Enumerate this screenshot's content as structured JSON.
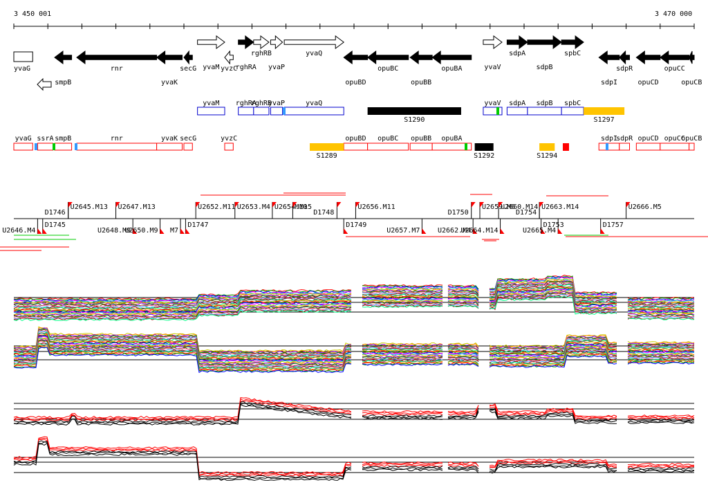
{
  "coordinates": {
    "start_label": "3 450 001",
    "end_label": "3 470 000",
    "start": 3450001,
    "end": 3470000
  },
  "colors": {
    "black": "#000000",
    "outline_blue": "#0000cc",
    "outline_red": "#ff0000",
    "highlight_yellow": "#ffc400",
    "marker_red": "#ff0000",
    "marker_blue": "#3399ff",
    "marker_green": "#00cc00",
    "plot_red": "#ff0000",
    "plot_black": "#000000"
  },
  "genes": [
    {
      "name": "yvaG",
      "start": 3450001,
      "end": 3450555,
      "strand": "+",
      "filled": false
    },
    {
      "name": "smpB",
      "start": 3451200,
      "end": 3451700,
      "strand": "-",
      "filled": true
    },
    {
      "name": "rnr",
      "start": 3451850,
      "end": 3454200,
      "strand": "-",
      "filled": true
    },
    {
      "name": "yvaK",
      "start": 3454200,
      "end": 3454950,
      "strand": "-",
      "filled": true
    },
    {
      "name": "secG",
      "start": 3455000,
      "end": 3455250,
      "strand": "-",
      "filled": true
    },
    {
      "name": "yvaM",
      "start": 3455400,
      "end": 3456200,
      "strand": "+",
      "filled": false
    },
    {
      "name": "yvzC",
      "start": 3456200,
      "end": 3456450,
      "strand": "-",
      "filled": false
    },
    {
      "name": "rghRA",
      "start": 3456600,
      "end": 3457050,
      "strand": "+",
      "filled": true
    },
    {
      "name": "rghRB",
      "start": 3457050,
      "end": 3457500,
      "strand": "+",
      "filled": false
    },
    {
      "name": "yvaP",
      "start": 3457550,
      "end": 3457900,
      "strand": "+",
      "filled": false
    },
    {
      "name": "yvaQ",
      "start": 3457950,
      "end": 3459700,
      "strand": "+",
      "filled": false
    },
    {
      "name": "opuBD",
      "start": 3459700,
      "end": 3460400,
      "strand": "-",
      "filled": true
    },
    {
      "name": "opuBC",
      "start": 3460400,
      "end": 3461600,
      "strand": "-",
      "filled": true
    },
    {
      "name": "opuBB",
      "start": 3461650,
      "end": 3462300,
      "strand": "-",
      "filled": true
    },
    {
      "name": "opuBA",
      "start": 3462300,
      "end": 3463450,
      "strand": "-",
      "filled": true
    },
    {
      "name": "yvaV",
      "start": 3463800,
      "end": 3464350,
      "strand": "+",
      "filled": false
    },
    {
      "name": "sdpA",
      "start": 3464500,
      "end": 3465100,
      "strand": "+",
      "filled": true
    },
    {
      "name": "sdpB",
      "start": 3465100,
      "end": 3466100,
      "strand": "+",
      "filled": true
    },
    {
      "name": "spbC",
      "start": 3466100,
      "end": 3466750,
      "strand": "+",
      "filled": true
    },
    {
      "name": "sdpI",
      "start": 3467200,
      "end": 3467800,
      "strand": "-",
      "filled": true
    },
    {
      "name": "sdpR",
      "start": 3467800,
      "end": 3468100,
      "strand": "-",
      "filled": true
    },
    {
      "name": "opuCD",
      "start": 3468300,
      "end": 3469000,
      "strand": "-",
      "filled": true
    },
    {
      "name": "opuCC",
      "start": 3469000,
      "end": 3469850,
      "strand": "-",
      "filled": true
    },
    {
      "name": "opuCB",
      "start": 3469850,
      "end": 3470000,
      "strand": "-",
      "filled": true
    }
  ],
  "extra_genes": [
    {
      "name": "ssrA",
      "start": 3451800,
      "end": 3452200,
      "strand": "-",
      "filled": false
    }
  ],
  "transcript_units_blue": [
    {
      "name": "yvaM",
      "start": 3455400,
      "end": 3456200
    },
    {
      "name": "rghRA",
      "start": 3456600,
      "end": 3457050
    },
    {
      "name": "rghRB",
      "start": 3457050,
      "end": 3457500
    },
    {
      "name": "yvaP",
      "start": 3457550,
      "end": 3457900
    },
    {
      "name": "yvaQ",
      "start": 3457950,
      "end": 3459700
    },
    {
      "name": "yvaV",
      "start": 3463800,
      "end": 3464350
    },
    {
      "name": "sdpA",
      "start": 3464500,
      "end": 3465100
    },
    {
      "name": "sdpB",
      "start": 3465100,
      "end": 3466100
    },
    {
      "name": "spbC",
      "start": 3466100,
      "end": 3466750
    }
  ],
  "transcript_units_red": [
    {
      "name": "yvaG",
      "start": 3450001,
      "end": 3450555
    },
    {
      "name": "ssrA",
      "start": 3450700,
      "end": 3451150
    },
    {
      "name": "smpB",
      "start": 3451200,
      "end": 3451700
    },
    {
      "name": "rnr",
      "start": 3451850,
      "end": 3454200
    },
    {
      "name": "yvaK",
      "start": 3454200,
      "end": 3454950
    },
    {
      "name": "secG",
      "start": 3455000,
      "end": 3455250
    },
    {
      "name": "yvzC",
      "start": 3456200,
      "end": 3456450
    },
    {
      "name": "opuBD",
      "start": 3459700,
      "end": 3460400
    },
    {
      "name": "opuBC",
      "start": 3460400,
      "end": 3461600
    },
    {
      "name": "opuBB",
      "start": 3461650,
      "end": 3462300
    },
    {
      "name": "opuBA",
      "start": 3462300,
      "end": 3463450
    },
    {
      "name": "sdpI",
      "start": 3467200,
      "end": 3467800
    },
    {
      "name": "sdpR",
      "start": 3467800,
      "end": 3468100
    },
    {
      "name": "opuCD",
      "start": 3468300,
      "end": 3469000
    },
    {
      "name": "opuCC",
      "start": 3469000,
      "end": 3469850
    },
    {
      "name": "opuCB",
      "start": 3469850,
      "end": 3470000
    }
  ],
  "segments": [
    {
      "name": "S1290",
      "row": "blue",
      "color": "#000000",
      "start": 3460400,
      "end": 3463150
    },
    {
      "name": "S1297",
      "row": "blue",
      "color": "#ffc400",
      "start": 3466750,
      "end": 3467950
    },
    {
      "name": "S1289",
      "row": "red",
      "color": "#ffc400",
      "start": 3458700,
      "end": 3459700
    },
    {
      "name": "S1292",
      "row": "red",
      "color": "#000000",
      "start": 3463550,
      "end": 3464100
    },
    {
      "name": "S1294",
      "row": "red",
      "color": "#ffc400",
      "start": 3465450,
      "end": 3465900
    }
  ],
  "markers_top": [
    {
      "name": "D1746",
      "pos": 3451600
    },
    {
      "name": "U2645.M13",
      "pos": 3451600
    },
    {
      "name": "U2647.M13",
      "pos": 3453000
    },
    {
      "name": "U2652.M11",
      "pos": 3455350
    },
    {
      "name": "U2653.M4",
      "pos": 3456500
    },
    {
      "name": "U2654.M15",
      "pos": 3457600
    },
    {
      "name": "M10",
      "pos": 3458200
    },
    {
      "name": "D1748",
      "pos": 3459500
    },
    {
      "name": "U2656.M11",
      "pos": 3460050
    },
    {
      "name": "D1750",
      "pos": 3463450
    },
    {
      "name": "U2659.M6",
      "pos": 3463700
    },
    {
      "name": "U2660.M14",
      "pos": 3464250
    },
    {
      "name": "U2663.M14",
      "pos": 3465450
    },
    {
      "name": "D1754",
      "pos": 3465450
    },
    {
      "name": "U2666.M5",
      "pos": 3468000
    }
  ],
  "markers_bottom": [
    {
      "name": "D1745",
      "pos": 3450850
    },
    {
      "name": "U2646.M4",
      "pos": 3450700
    },
    {
      "name": "U2648.M9",
      "pos": 3453500
    },
    {
      "name": "U2650.M9",
      "pos": 3454300
    },
    {
      "name": "M7",
      "pos": 3454900
    },
    {
      "name": "D1747",
      "pos": 3455050
    },
    {
      "name": "D1749",
      "pos": 3459700
    },
    {
      "name": "U2657.M7",
      "pos": 3462000
    },
    {
      "name": "U2662.M4",
      "pos": 3463500
    },
    {
      "name": "U2664.M14",
      "pos": 3464300
    },
    {
      "name": "D1753",
      "pos": 3465500
    },
    {
      "name": "U2665.M4",
      "pos": 3466000
    },
    {
      "name": "D1757",
      "pos": 3467250
    }
  ]
}
